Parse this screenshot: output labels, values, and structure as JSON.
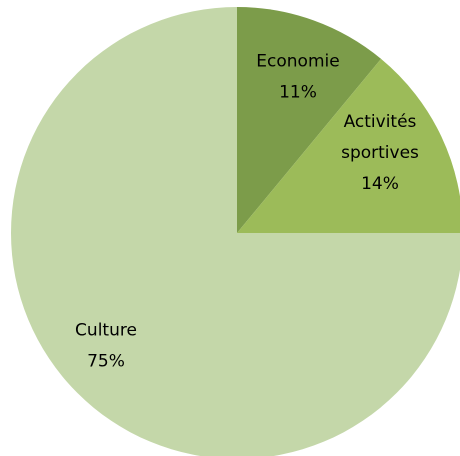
{
  "chart_data": {
    "type": "pie",
    "slices": [
      {
        "label": "Economie",
        "pct_label": "11%",
        "value": 11,
        "color": "#7c9c4a"
      },
      {
        "label": "Activités sportives",
        "label_lines": [
          "Activités",
          "sportives"
        ],
        "pct_label": "14%",
        "value": 14,
        "color": "#9cbb59"
      },
      {
        "label": "Culture",
        "pct_label": "75%",
        "value": 75,
        "color": "#c4d7a9"
      }
    ],
    "title": "",
    "legend": "none",
    "start_angle": "12 o'clock",
    "direction": "clockwise"
  }
}
